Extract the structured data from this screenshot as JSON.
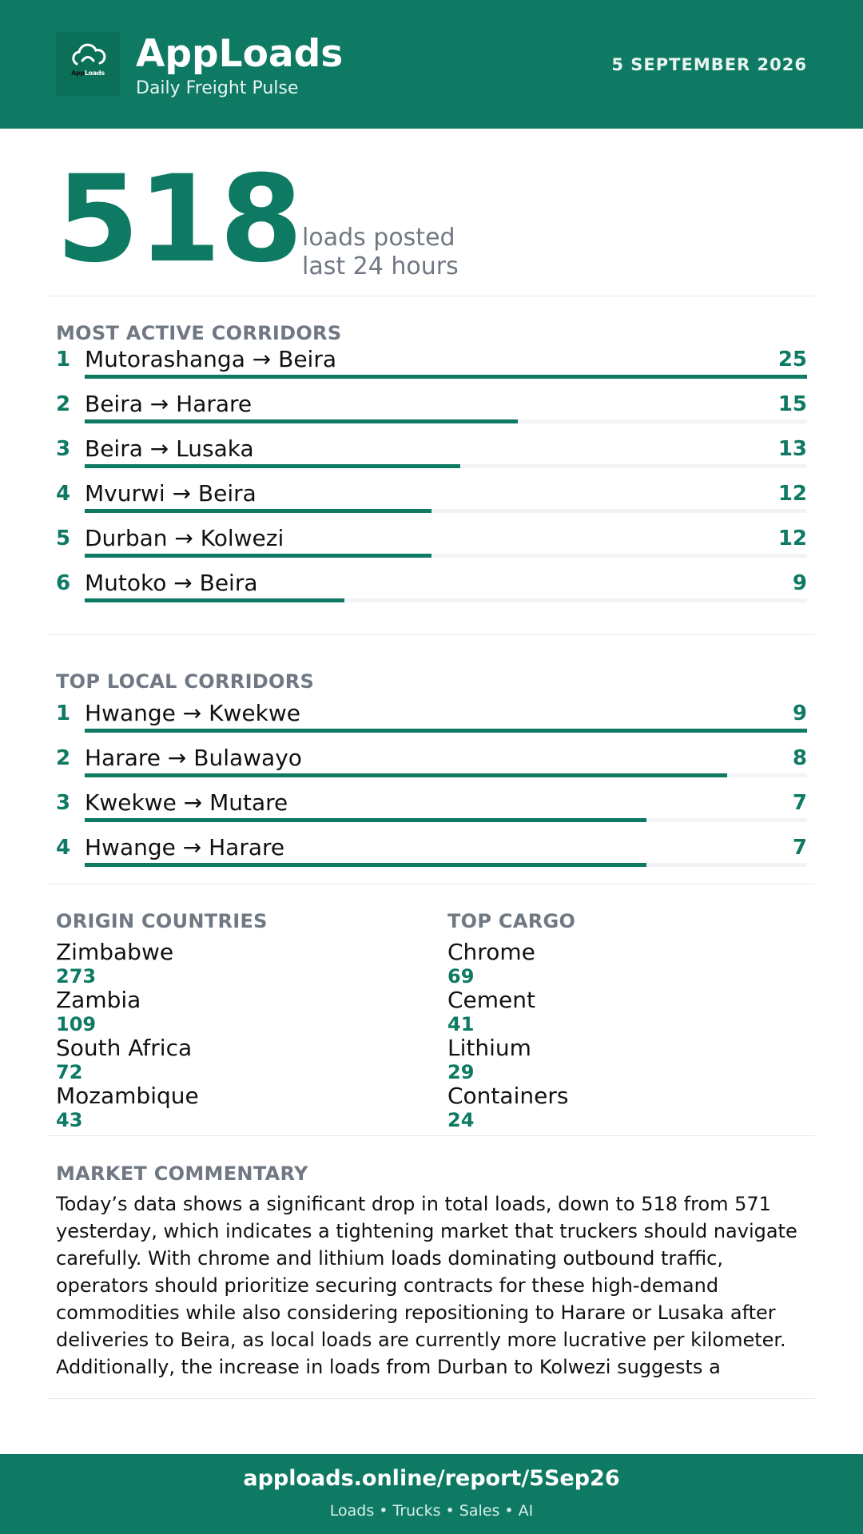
{
  "header": {
    "logo_icon": "cloud-icon",
    "logo_text_app": "App",
    "logo_text_loads": "Loads",
    "brand": "AppLoads",
    "tagline": "Daily Freight Pulse",
    "date": "5 SEPTEMBER 2026"
  },
  "hero": {
    "count": "518",
    "label_line1": "loads posted",
    "label_line2": "last 24 hours"
  },
  "most_active": {
    "title": "MOST ACTIVE CORRIDORS",
    "items": [
      {
        "rank": "1",
        "route": "Mutorashanga → Beira",
        "count": 25,
        "share": 1.0
      },
      {
        "rank": "2",
        "route": "Beira → Harare",
        "count": 15,
        "share": 0.6
      },
      {
        "rank": "3",
        "route": "Beira → Lusaka",
        "count": 13,
        "share": 0.52
      },
      {
        "rank": "4",
        "route": "Mvurwi → Beira",
        "count": 12,
        "share": 0.48
      },
      {
        "rank": "5",
        "route": "Durban → Kolwezi",
        "count": 12,
        "share": 0.48
      },
      {
        "rank": "6",
        "route": "Mutoko → Beira",
        "count": 9,
        "share": 0.36
      }
    ]
  },
  "top_local": {
    "title": "TOP LOCAL CORRIDORS",
    "items": [
      {
        "rank": "1",
        "route": "Hwange → Kwekwe",
        "count": 9,
        "share": 1.0
      },
      {
        "rank": "2",
        "route": "Harare → Bulawayo",
        "count": 8,
        "share": 0.889
      },
      {
        "rank": "3",
        "route": "Kwekwe → Mutare",
        "count": 7,
        "share": 0.778
      },
      {
        "rank": "4",
        "route": "Hwange → Harare",
        "count": 7,
        "share": 0.778
      }
    ]
  },
  "origin_countries": {
    "title": "ORIGIN COUNTRIES",
    "items": [
      {
        "label": "Zimbabwe",
        "value": "273"
      },
      {
        "label": "Zambia",
        "value": "109"
      },
      {
        "label": "South Africa",
        "value": "72"
      },
      {
        "label": "Mozambique",
        "value": "43"
      }
    ]
  },
  "top_cargo": {
    "title": "TOP CARGO",
    "items": [
      {
        "label": "Chrome",
        "value": "69"
      },
      {
        "label": "Cement",
        "value": "41"
      },
      {
        "label": "Lithium",
        "value": "29"
      },
      {
        "label": "Containers",
        "value": "24"
      }
    ]
  },
  "commentary": {
    "title": "MARKET COMMENTARY",
    "text": "Today’s data shows a significant drop in total loads, down to 518 from 571 yesterday, which indicates a tightening market that truckers should navigate carefully. With chrome and lithium loads dominating outbound traffic, operators should prioritize securing contracts for these high-demand commodities while also considering repositioning to Harare or Lusaka after deliveries to Beira, as local loads are currently more lucrative per kilometer. Additionally, the increase in loads from Durban to Kolwezi suggests a"
  },
  "footer": {
    "link": "apploads.online/report/5Sep26",
    "tagline": "Loads • Trucks • Sales • AI"
  },
  "colors": {
    "brand_green": "#0e7a63",
    "muted_gray": "#707883",
    "track_gray": "#f1f3f5"
  }
}
